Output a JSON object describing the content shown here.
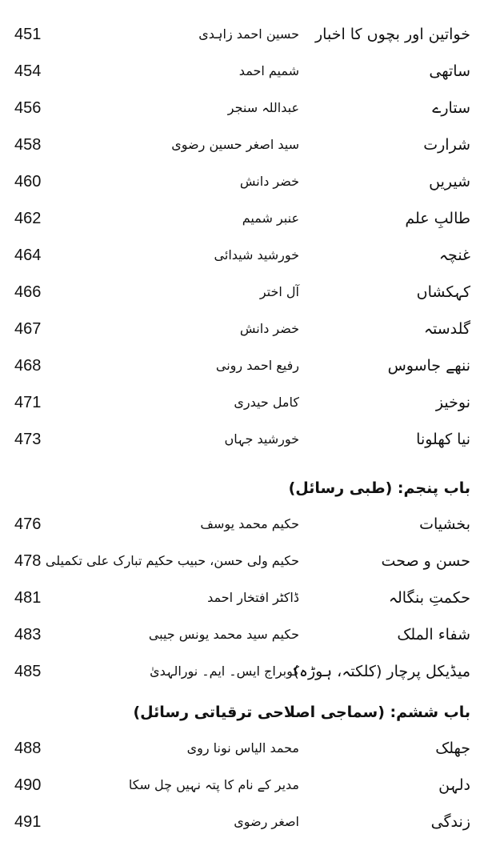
{
  "sections": [
    {
      "entries": [
        {
          "title": "خواتین اور بچوں کا اخبار",
          "editor": "حسین احمد زاہدی",
          "page": 451
        },
        {
          "title": "ساتھی",
          "editor": "شمیم احمد",
          "page": 454
        },
        {
          "title": "ستارے",
          "editor": "عبداللہ سنجر",
          "page": 456
        },
        {
          "title": "شرارت",
          "editor": "سید اصغر حسین رضوی",
          "page": 458
        },
        {
          "title": "شیریں",
          "editor": "خضر دانش",
          "page": 460
        },
        {
          "title": "طالبِ علم",
          "editor": "عنبر شمیم",
          "page": 462
        },
        {
          "title": "غنچہ",
          "editor": "خورشید شیدائی",
          "page": 464
        },
        {
          "title": "کہکشاں",
          "editor": "آل اختر",
          "page": 466
        },
        {
          "title": "گلدستہ",
          "editor": "خضر دانش",
          "page": 467
        },
        {
          "title": "ننھے جاسوس",
          "editor": "رفیع احمد رونی",
          "page": 468
        },
        {
          "title": "نوخیز",
          "editor": "کامل حیدری",
          "page": 471
        },
        {
          "title": "نیا کھلونا",
          "editor": "خورشید جہاں",
          "page": 473
        }
      ]
    },
    {
      "heading": "باب پنجم: (طبی رسائل)",
      "entries": [
        {
          "title": "بخشیات",
          "editor": "حکیم محمد یوسف",
          "page": 476
        },
        {
          "title": "حسن و صحت",
          "editor": "حکیم ولی حسن، حبیب حکیم تبارک علی تکمیلی",
          "page": 478
        },
        {
          "title": "حکمتِ بنگالہ",
          "editor": "ڈاکٹر افتخار احمد",
          "page": 481
        },
        {
          "title": "شفاء الملک",
          "editor": "حکیم سید محمد یونس جیبی",
          "page": 483
        },
        {
          "title": "میڈیکل پرچار (کلکتہ، ہوڑہ)",
          "editor": "کوبراج ایس۔ ایم۔ نورالہدیٰ",
          "page": 485
        }
      ]
    },
    {
      "heading": "باب ششم: (سماجی اصلاحی ترقیاتی رسائل)",
      "entries": [
        {
          "title": "جھلک",
          "editor": "محمد الیاس نونا روی",
          "page": 488
        },
        {
          "title": "دلہن",
          "editor": "مدیر کے نام کا پتہ نہیں چل سکا",
          "page": 490
        },
        {
          "title": "زندگی",
          "editor": "اصغر رضوی",
          "page": 491
        }
      ]
    }
  ]
}
